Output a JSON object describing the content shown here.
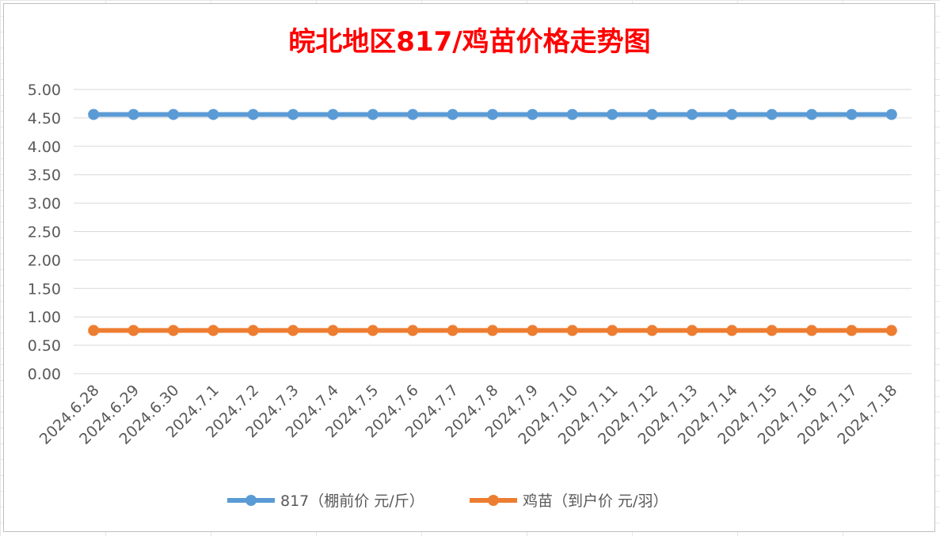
{
  "chart_data": {
    "type": "line",
    "title": "皖北地区817/鸡苗价格走势图",
    "categories": [
      "2024.6.28",
      "2024.6.29",
      "2024.6.30",
      "2024.7.1",
      "2024.7.2",
      "2024.7.3",
      "2024.7.4",
      "2024.7.5",
      "2024.7.6",
      "2024.7.7",
      "2024.7.8",
      "2024.7.9",
      "2024.7.10",
      "2024.7.11",
      "2024.7.12",
      "2024.7.13",
      "2024.7.14",
      "2024.7.15",
      "2024.7.16",
      "2024.7.17",
      "2024.7.18"
    ],
    "series": [
      {
        "name": "817（棚前价 元/斤）",
        "color": "#5b9bd5",
        "values": [
          4.56,
          4.56,
          4.56,
          4.56,
          4.56,
          4.56,
          4.56,
          4.56,
          4.56,
          4.56,
          4.56,
          4.56,
          4.56,
          4.56,
          4.56,
          4.56,
          4.56,
          4.56,
          4.56,
          4.56,
          4.56
        ]
      },
      {
        "name": "鸡苗（到户价 元/羽）",
        "color": "#ed7d31",
        "values": [
          0.76,
          0.76,
          0.76,
          0.76,
          0.76,
          0.76,
          0.76,
          0.76,
          0.76,
          0.76,
          0.76,
          0.76,
          0.76,
          0.76,
          0.76,
          0.76,
          0.76,
          0.76,
          0.76,
          0.76,
          0.76
        ]
      }
    ],
    "yticks": [
      "0.00",
      "0.50",
      "1.00",
      "1.50",
      "2.00",
      "2.50",
      "3.00",
      "3.50",
      "4.00",
      "4.50",
      "5.00"
    ],
    "ylim": [
      0,
      5
    ],
    "xlabel": "",
    "ylabel": "",
    "grid": true,
    "legend_position": "bottom",
    "title_color": "#ff0000"
  }
}
